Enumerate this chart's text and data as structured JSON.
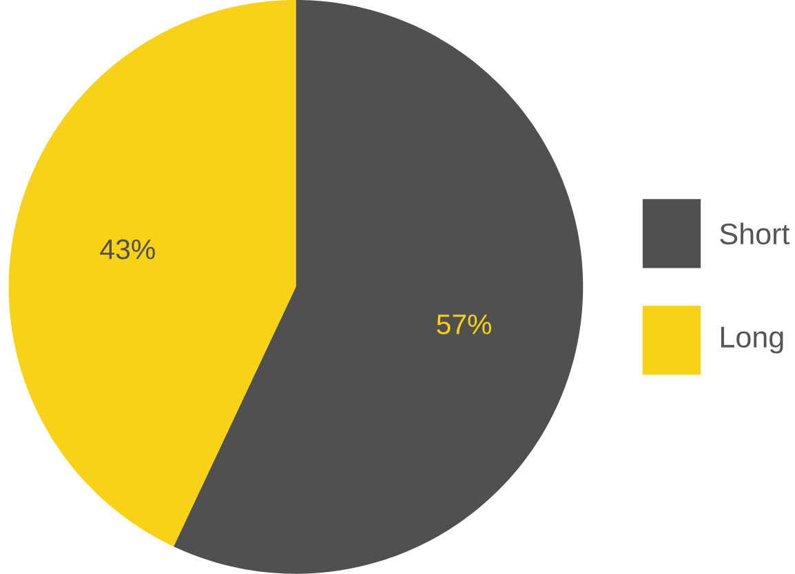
{
  "chart_data": {
    "type": "pie",
    "categories": [
      "Short",
      "Long"
    ],
    "values": [
      57,
      43
    ],
    "colors": [
      "#505050",
      "#f9d116"
    ],
    "value_labels": [
      "57%",
      "43%"
    ],
    "legend": "right"
  }
}
